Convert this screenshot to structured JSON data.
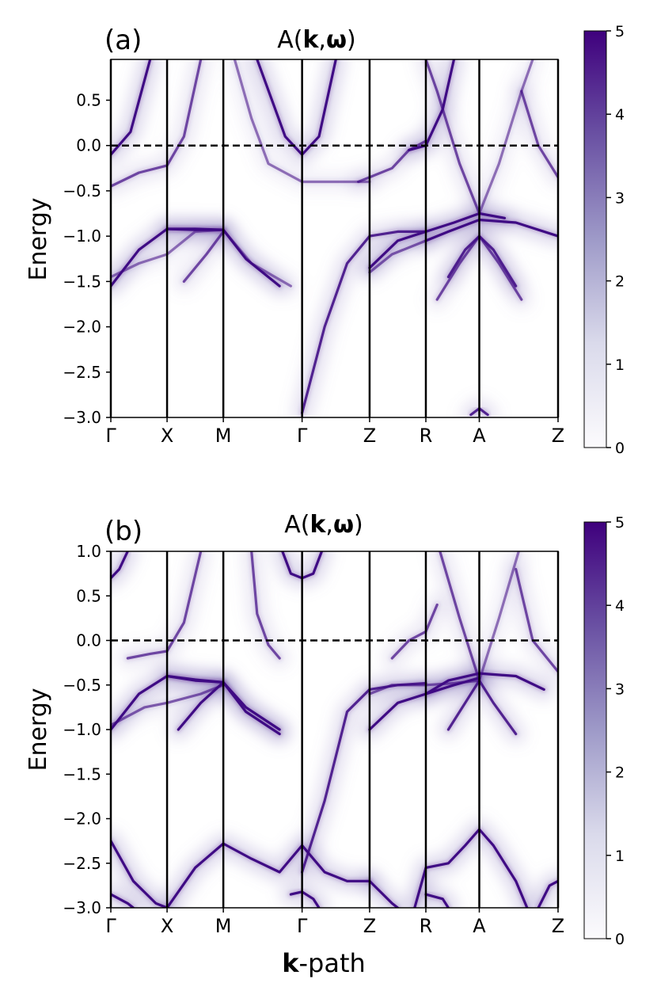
{
  "figure": {
    "xlabel_bold": "k",
    "xlabel_rest": "-path",
    "colors": {
      "band": "#3f0b84",
      "band_dim": "#8d7fc0",
      "background": "#ffffff",
      "axis": "#000000",
      "colormap": [
        "#fcfbfd",
        "#dadaeb",
        "#9e9ac8",
        "#6a51a3",
        "#3f007d"
      ]
    }
  },
  "chart_data": [
    {
      "type": "heatmap",
      "panel_label": "(a)",
      "title_prefix": "A(",
      "title_k": "k",
      "title_sep": ",",
      "title_w": "ω",
      "title_suffix": ")",
      "ylabel": "Energy",
      "xlabel": "",
      "ylim": [
        -3.0,
        0.95
      ],
      "yticks": [
        -3.0,
        -2.5,
        -2.0,
        -1.5,
        -1.0,
        -0.5,
        0.0,
        0.5
      ],
      "k_labels": [
        "Γ",
        "X",
        "M",
        "Γ",
        "Z",
        "R",
        "A",
        "Z"
      ],
      "k_positions": [
        0,
        1,
        2,
        3.4,
        4.6,
        5.6,
        6.55,
        7.95
      ],
      "fermi_level": 0.0,
      "colorbar": {
        "min": 0,
        "max": 5,
        "ticks": [
          0,
          1,
          2,
          3,
          4,
          5
        ]
      },
      "bands": [
        {
          "strength": 1.0,
          "points": [
            [
              0,
              -0.1
            ],
            [
              0.35,
              0.15
            ],
            [
              0.7,
              0.95
            ]
          ]
        },
        {
          "strength": 0.6,
          "points": [
            [
              0,
              -0.45
            ],
            [
              0.5,
              -0.3
            ],
            [
              1,
              -0.22
            ],
            [
              1.3,
              0.1
            ],
            [
              1.6,
              0.95
            ]
          ]
        },
        {
          "strength": 1.0,
          "points": [
            [
              1,
              -0.92
            ],
            [
              1.5,
              -0.92
            ],
            [
              2,
              -0.93
            ],
            [
              2.4,
              -1.25
            ],
            [
              3.0,
              -1.55
            ]
          ]
        },
        {
          "strength": 1.0,
          "points": [
            [
              0,
              -1.55
            ],
            [
              0.5,
              -1.15
            ],
            [
              1,
              -0.92
            ],
            [
              1.5,
              -0.93
            ],
            [
              2,
              -0.93
            ]
          ]
        },
        {
          "strength": 0.4,
          "points": [
            [
              0,
              -1.45
            ],
            [
              0.5,
              -1.3
            ],
            [
              1,
              -1.2
            ],
            [
              1.5,
              -0.95
            ],
            [
              2,
              -0.93
            ],
            [
              2.5,
              -1.3
            ],
            [
              3.2,
              -1.55
            ]
          ]
        },
        {
          "strength": 0.6,
          "points": [
            [
              1.3,
              -1.5
            ],
            [
              1.7,
              -1.2
            ],
            [
              2,
              -0.95
            ]
          ]
        },
        {
          "strength": 1.0,
          "points": [
            [
              2.6,
              0.95
            ],
            [
              3.1,
              0.1
            ],
            [
              3.4,
              -0.1
            ],
            [
              3.7,
              0.1
            ],
            [
              4.0,
              0.95
            ]
          ]
        },
        {
          "strength": 0.4,
          "points": [
            [
              2.2,
              0.95
            ],
            [
              2.5,
              0.3
            ],
            [
              2.8,
              -0.2
            ],
            [
              3.4,
              -0.4
            ],
            [
              4.6,
              -0.4
            ]
          ]
        },
        {
          "strength": 0.8,
          "points": [
            [
              3.4,
              -2.95
            ],
            [
              3.8,
              -2.0
            ],
            [
              4.2,
              -1.3
            ],
            [
              4.6,
              -1.0
            ],
            [
              5.1,
              -0.95
            ],
            [
              5.6,
              -0.95
            ]
          ]
        },
        {
          "strength": 0.5,
          "points": [
            [
              4.6,
              -1.4
            ],
            [
              5.0,
              -1.2
            ],
            [
              5.6,
              -1.05
            ]
          ]
        },
        {
          "strength": 0.6,
          "points": [
            [
              4.4,
              -0.4
            ],
            [
              5.0,
              -0.25
            ],
            [
              5.3,
              -0.05
            ],
            [
              5.6,
              0.05
            ]
          ]
        },
        {
          "strength": 1.0,
          "points": [
            [
              5.3,
              -0.05
            ],
            [
              5.6,
              0.0
            ],
            [
              5.9,
              0.4
            ],
            [
              6.1,
              0.95
            ]
          ]
        },
        {
          "strength": 1.0,
          "points": [
            [
              5.6,
              -1.05
            ],
            [
              6.0,
              -0.95
            ],
            [
              6.55,
              -0.82
            ],
            [
              7.2,
              -0.85
            ],
            [
              7.95,
              -1.0
            ]
          ]
        },
        {
          "strength": 1.0,
          "points": [
            [
              4.6,
              -1.35
            ],
            [
              5.1,
              -1.05
            ],
            [
              5.6,
              -0.95
            ],
            [
              6.1,
              -0.85
            ],
            [
              6.55,
              -0.75
            ],
            [
              7.0,
              -0.8
            ]
          ]
        },
        {
          "strength": 0.8,
          "points": [
            [
              6.0,
              -1.45
            ],
            [
              6.3,
              -1.15
            ],
            [
              6.55,
              -1.0
            ],
            [
              6.8,
              -1.15
            ],
            [
              7.2,
              -1.55
            ]
          ]
        },
        {
          "strength": 0.6,
          "points": [
            [
              5.8,
              -1.7
            ],
            [
              6.2,
              -1.3
            ],
            [
              6.55,
              -1.0
            ],
            [
              6.9,
              -1.3
            ],
            [
              7.3,
              -1.7
            ]
          ]
        },
        {
          "strength": 0.6,
          "points": [
            [
              6.55,
              -0.75
            ],
            [
              6.2,
              -0.2
            ],
            [
              5.8,
              0.6
            ],
            [
              5.6,
              0.95
            ]
          ]
        },
        {
          "strength": 0.4,
          "points": [
            [
              6.55,
              -0.75
            ],
            [
              6.9,
              -0.2
            ],
            [
              7.3,
              0.6
            ],
            [
              7.5,
              0.95
            ]
          ]
        },
        {
          "strength": 0.6,
          "points": [
            [
              7.3,
              0.6
            ],
            [
              7.6,
              0.0
            ],
            [
              7.95,
              -0.35
            ]
          ]
        },
        {
          "strength": 0.8,
          "points": [
            [
              6.4,
              -2.97
            ],
            [
              6.55,
              -2.9
            ],
            [
              6.7,
              -2.97
            ]
          ]
        }
      ]
    },
    {
      "type": "heatmap",
      "panel_label": "(b)",
      "title_prefix": "A(",
      "title_k": "k",
      "title_sep": ",",
      "title_w": "ω",
      "title_suffix": ")",
      "ylabel": "Energy",
      "xlabel": "k-path",
      "ylim": [
        -3.0,
        1.0
      ],
      "yticks": [
        -3.0,
        -2.5,
        -2.0,
        -1.5,
        -1.0,
        -0.5,
        0.0,
        0.5,
        1.0
      ],
      "k_labels": [
        "Γ",
        "X",
        "M",
        "Γ",
        "Z",
        "R",
        "A",
        "Z"
      ],
      "k_positions": [
        0,
        1,
        2,
        3.4,
        4.6,
        5.6,
        6.55,
        7.95
      ],
      "fermi_level": 0.0,
      "colorbar": {
        "min": 0,
        "max": 5,
        "ticks": [
          0,
          1,
          2,
          3,
          4,
          5
        ]
      },
      "bands": [
        {
          "strength": 1.0,
          "points": [
            [
              0,
              0.7
            ],
            [
              0.15,
              0.8
            ],
            [
              0.3,
              1.0
            ]
          ]
        },
        {
          "strength": 1.0,
          "points": [
            [
              3.05,
              1.0
            ],
            [
              3.2,
              0.75
            ],
            [
              3.4,
              0.7
            ],
            [
              3.6,
              0.75
            ],
            [
              3.75,
              1.0
            ]
          ]
        },
        {
          "strength": 0.6,
          "points": [
            [
              0.3,
              -0.2
            ],
            [
              0.7,
              -0.15
            ],
            [
              1,
              -0.12
            ],
            [
              1.3,
              0.2
            ],
            [
              1.6,
              1.0
            ]
          ]
        },
        {
          "strength": 0.6,
          "points": [
            [
              2.5,
              1.0
            ],
            [
              2.6,
              0.3
            ],
            [
              2.8,
              -0.05
            ],
            [
              3.0,
              -0.2
            ]
          ]
        },
        {
          "strength": 1.0,
          "points": [
            [
              0,
              -1.0
            ],
            [
              0.5,
              -0.6
            ],
            [
              1,
              -0.4
            ],
            [
              1.5,
              -0.45
            ],
            [
              2,
              -0.47
            ]
          ]
        },
        {
          "strength": 1.0,
          "points": [
            [
              1,
              -0.4
            ],
            [
              1.5,
              -0.44
            ],
            [
              2,
              -0.47
            ],
            [
              2.4,
              -0.75
            ],
            [
              3.0,
              -1.0
            ]
          ]
        },
        {
          "strength": 1.0,
          "points": [
            [
              1.2,
              -1.0
            ],
            [
              1.6,
              -0.7
            ],
            [
              2,
              -0.47
            ],
            [
              2.4,
              -0.8
            ],
            [
              3.0,
              -1.05
            ]
          ]
        },
        {
          "strength": 0.5,
          "points": [
            [
              0,
              -0.95
            ],
            [
              0.6,
              -0.75
            ],
            [
              1.0,
              -0.7
            ],
            [
              1.6,
              -0.6
            ],
            [
              2,
              -0.5
            ]
          ]
        },
        {
          "strength": 0.8,
          "points": [
            [
              3.4,
              -2.6
            ],
            [
              3.8,
              -1.8
            ],
            [
              4.2,
              -0.8
            ],
            [
              4.6,
              -0.55
            ],
            [
              5.1,
              -0.5
            ],
            [
              5.6,
              -0.48
            ]
          ]
        },
        {
          "strength": 0.5,
          "points": [
            [
              4.6,
              -0.6
            ],
            [
              5.0,
              -0.5
            ],
            [
              5.6,
              -0.5
            ],
            [
              6.1,
              -0.48
            ],
            [
              6.55,
              -0.45
            ]
          ]
        },
        {
          "strength": 1.0,
          "points": [
            [
              4.6,
              -1.0
            ],
            [
              5.1,
              -0.7
            ],
            [
              5.6,
              -0.6
            ],
            [
              6.1,
              -0.5
            ],
            [
              6.55,
              -0.42
            ]
          ]
        },
        {
          "strength": 1.0,
          "points": [
            [
              5.6,
              -0.6
            ],
            [
              6.0,
              -0.45
            ],
            [
              6.55,
              -0.37
            ],
            [
              7.2,
              -0.4
            ],
            [
              7.7,
              -0.55
            ]
          ]
        },
        {
          "strength": 0.8,
          "points": [
            [
              6.0,
              -1.0
            ],
            [
              6.3,
              -0.7
            ],
            [
              6.55,
              -0.45
            ],
            [
              6.8,
              -0.7
            ],
            [
              7.2,
              -1.05
            ]
          ]
        },
        {
          "strength": 0.6,
          "points": [
            [
              6.55,
              -0.45
            ],
            [
              6.2,
              0.25
            ],
            [
              5.85,
              1.0
            ]
          ]
        },
        {
          "strength": 0.4,
          "points": [
            [
              6.55,
              -0.45
            ],
            [
              6.9,
              0.25
            ],
            [
              7.25,
              1.0
            ]
          ]
        },
        {
          "strength": 0.6,
          "points": [
            [
              7.2,
              0.8
            ],
            [
              7.5,
              0.0
            ],
            [
              7.95,
              -0.35
            ]
          ]
        },
        {
          "strength": 0.6,
          "points": [
            [
              5.0,
              -0.2
            ],
            [
              5.3,
              0.0
            ],
            [
              5.6,
              0.1
            ],
            [
              5.8,
              0.4
            ]
          ]
        },
        {
          "strength": 1.0,
          "points": [
            [
              0,
              -2.25
            ],
            [
              0.4,
              -2.7
            ],
            [
              0.8,
              -2.95
            ],
            [
              1,
              -3.0
            ]
          ]
        },
        {
          "strength": 1.0,
          "points": [
            [
              1.0,
              -3.0
            ],
            [
              1.5,
              -2.55
            ],
            [
              2,
              -2.28
            ],
            [
              2.5,
              -2.45
            ],
            [
              3.0,
              -2.6
            ],
            [
              3.4,
              -2.3
            ],
            [
              3.8,
              -2.6
            ],
            [
              4.2,
              -2.7
            ],
            [
              4.6,
              -2.7
            ]
          ]
        },
        {
          "strength": 1.0,
          "points": [
            [
              0,
              -2.85
            ],
            [
              0.3,
              -2.95
            ],
            [
              0.4,
              -3.0
            ]
          ]
        },
        {
          "strength": 1.0,
          "points": [
            [
              3.2,
              -2.85
            ],
            [
              3.4,
              -2.82
            ],
            [
              3.6,
              -2.9
            ],
            [
              3.7,
              -3.0
            ]
          ]
        },
        {
          "strength": 1.0,
          "points": [
            [
              4.6,
              -2.7
            ],
            [
              5.0,
              -2.95
            ],
            [
              5.1,
              -3.0
            ]
          ]
        },
        {
          "strength": 1.0,
          "points": [
            [
              5.4,
              -3.0
            ],
            [
              5.6,
              -2.55
            ],
            [
              6.0,
              -2.5
            ],
            [
              6.3,
              -2.3
            ],
            [
              6.55,
              -2.12
            ],
            [
              6.8,
              -2.3
            ],
            [
              7.2,
              -2.7
            ],
            [
              7.4,
              -3.0
            ]
          ]
        },
        {
          "strength": 1.0,
          "points": [
            [
              5.6,
              -2.85
            ],
            [
              5.9,
              -2.9
            ],
            [
              6.0,
              -3.0
            ]
          ]
        },
        {
          "strength": 1.0,
          "points": [
            [
              7.6,
              -3.0
            ],
            [
              7.8,
              -2.75
            ],
            [
              7.95,
              -2.7
            ]
          ]
        }
      ]
    }
  ]
}
